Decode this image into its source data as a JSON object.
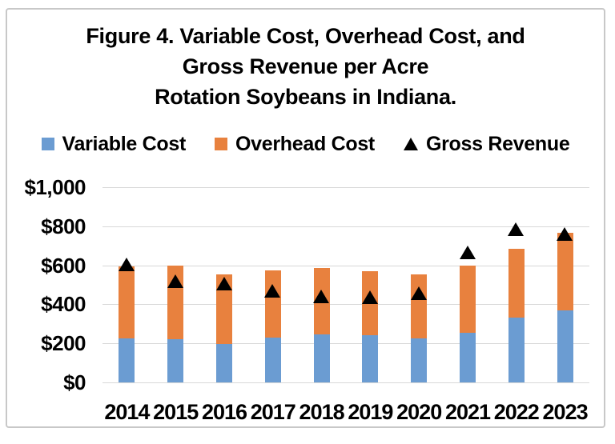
{
  "figure": {
    "title": {
      "line1": "Figure 4. Variable Cost, Overhead Cost, and",
      "line2": "Gross Revenue per Acre",
      "line3": "Rotation Soybeans in Indiana."
    }
  },
  "legend": {
    "items": [
      {
        "label": "Variable Cost",
        "marker": "square",
        "color": "#6B9CD2"
      },
      {
        "label": "Overhead Cost",
        "marker": "square",
        "color": "#E8813E"
      },
      {
        "label": "Gross Revenue",
        "marker": "triangle",
        "color": "#000000"
      }
    ]
  },
  "chart_data": {
    "type": "bar",
    "stacked": true,
    "title": "Figure 4. Variable Cost, Overhead Cost, and Gross Revenue per Acre Rotation Soybeans in Indiana.",
    "categories": [
      "2014",
      "2015",
      "2016",
      "2017",
      "2018",
      "2019",
      "2020",
      "2021",
      "2022",
      "2023"
    ],
    "series": [
      {
        "name": "Variable Cost",
        "type": "bar",
        "color": "#6B9CD2",
        "values": [
          225,
          220,
          195,
          230,
          245,
          240,
          225,
          255,
          330,
          370
        ]
      },
      {
        "name": "Overhead Cost",
        "type": "bar",
        "color": "#E8813E",
        "values": [
          370,
          380,
          360,
          345,
          340,
          330,
          330,
          345,
          355,
          395
        ]
      },
      {
        "name": "Gross Revenue",
        "type": "scatter",
        "marker": "triangle",
        "color": "#000000",
        "values": [
          605,
          520,
          505,
          470,
          440,
          435,
          455,
          665,
          785,
          760
        ]
      }
    ],
    "xlabel": "",
    "ylabel": "",
    "ylim": [
      0,
      1000
    ],
    "y_ticks": [
      "$1,000",
      "$800",
      "$600",
      "$400",
      "$200",
      "$0"
    ],
    "grid": true,
    "legend_position": "top",
    "grid_color": "#D8D8D8",
    "frame_color": "#C8C8C8"
  }
}
